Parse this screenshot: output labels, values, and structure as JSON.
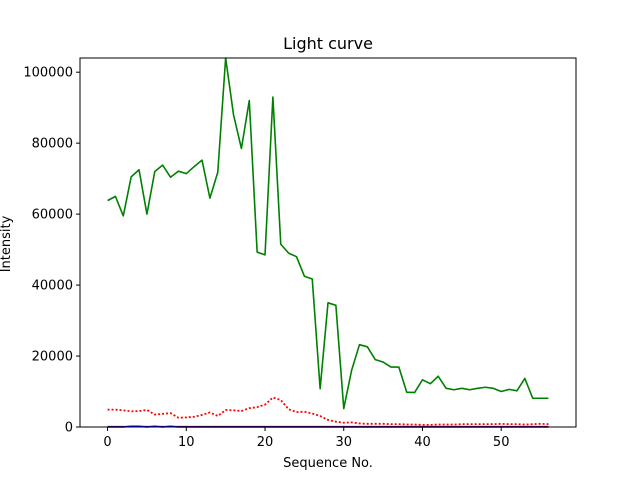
{
  "chart_data": {
    "type": "line",
    "title": "Light curve",
    "xlabel": "Sequence No.",
    "ylabel": "Intensity",
    "xlim": [
      -3.5,
      59.5
    ],
    "ylim": [
      0,
      104000
    ],
    "xticks": [
      0,
      10,
      20,
      30,
      40,
      50
    ],
    "yticks": [
      0,
      20000,
      40000,
      60000,
      80000,
      100000
    ],
    "grid": false,
    "legend": "none",
    "x": [
      0,
      1,
      2,
      3,
      4,
      5,
      6,
      7,
      8,
      9,
      10,
      11,
      12,
      13,
      14,
      15,
      16,
      17,
      18,
      19,
      20,
      21,
      22,
      23,
      24,
      25,
      26,
      27,
      28,
      29,
      30,
      31,
      32,
      33,
      34,
      35,
      36,
      37,
      38,
      39,
      40,
      41,
      42,
      43,
      44,
      45,
      46,
      47,
      48,
      49,
      50,
      51,
      52,
      53,
      54,
      55,
      56
    ],
    "series": [
      {
        "color": "#008000",
        "style": "solid",
        "values": [
          63800,
          65000,
          59500,
          70500,
          72500,
          60000,
          72000,
          73800,
          70400,
          72100,
          71400,
          73400,
          75200,
          64500,
          71800,
          104000,
          88000,
          78500,
          92000,
          49300,
          48500,
          93000,
          51500,
          49000,
          48000,
          42500,
          41700,
          10800,
          35000,
          34300,
          5200,
          16000,
          23200,
          22600,
          19000,
          18300,
          16900,
          16900,
          9800,
          9700,
          13300,
          12200,
          14300,
          10900,
          10500,
          10900,
          10500,
          10900,
          11200,
          10900,
          10000,
          10600,
          10200,
          13700,
          8100,
          8100,
          8100
        ]
      },
      {
        "color": "#ff0000",
        "style": "dotted",
        "values": [
          4900,
          4900,
          4700,
          4400,
          4500,
          4800,
          3500,
          3700,
          3900,
          2600,
          2700,
          2900,
          3400,
          4100,
          3100,
          4800,
          4700,
          4500,
          5300,
          5600,
          6300,
          8300,
          7600,
          5000,
          4200,
          4300,
          3800,
          3100,
          2000,
          1500,
          1200,
          1300,
          1000,
          900,
          900,
          900,
          800,
          800,
          700,
          700,
          600,
          600,
          700,
          700,
          700,
          800,
          800,
          800,
          800,
          800,
          900,
          800,
          800,
          700,
          800,
          900,
          800
        ]
      },
      {
        "color": "#0000ff",
        "style": "solid",
        "values": [
          0,
          0,
          0,
          200,
          200,
          0,
          200,
          0,
          200,
          0,
          0,
          0,
          0,
          0,
          0,
          0,
          0,
          0,
          0,
          0,
          0,
          0,
          0,
          0,
          0,
          0,
          0,
          0,
          0,
          0,
          0,
          0,
          0,
          0,
          0,
          0,
          0,
          0,
          0,
          0,
          0,
          0,
          0,
          0,
          0,
          0,
          0,
          0,
          0,
          0,
          0,
          0,
          0,
          0,
          0,
          0,
          0
        ]
      },
      {
        "color": "#8b0000",
        "style": "solid",
        "values": [
          100,
          100,
          100,
          100,
          100,
          100,
          100,
          100,
          100,
          100,
          100,
          100,
          100,
          100,
          100,
          100,
          100,
          100,
          100,
          100,
          100,
          100,
          100,
          100,
          100,
          100,
          100,
          100,
          100,
          100,
          100,
          100,
          100,
          100,
          100,
          100,
          100,
          100,
          100,
          100,
          100,
          100,
          100,
          100,
          100,
          100,
          100,
          100,
          100,
          100,
          100,
          100,
          100,
          100,
          100,
          100,
          100
        ]
      }
    ]
  }
}
